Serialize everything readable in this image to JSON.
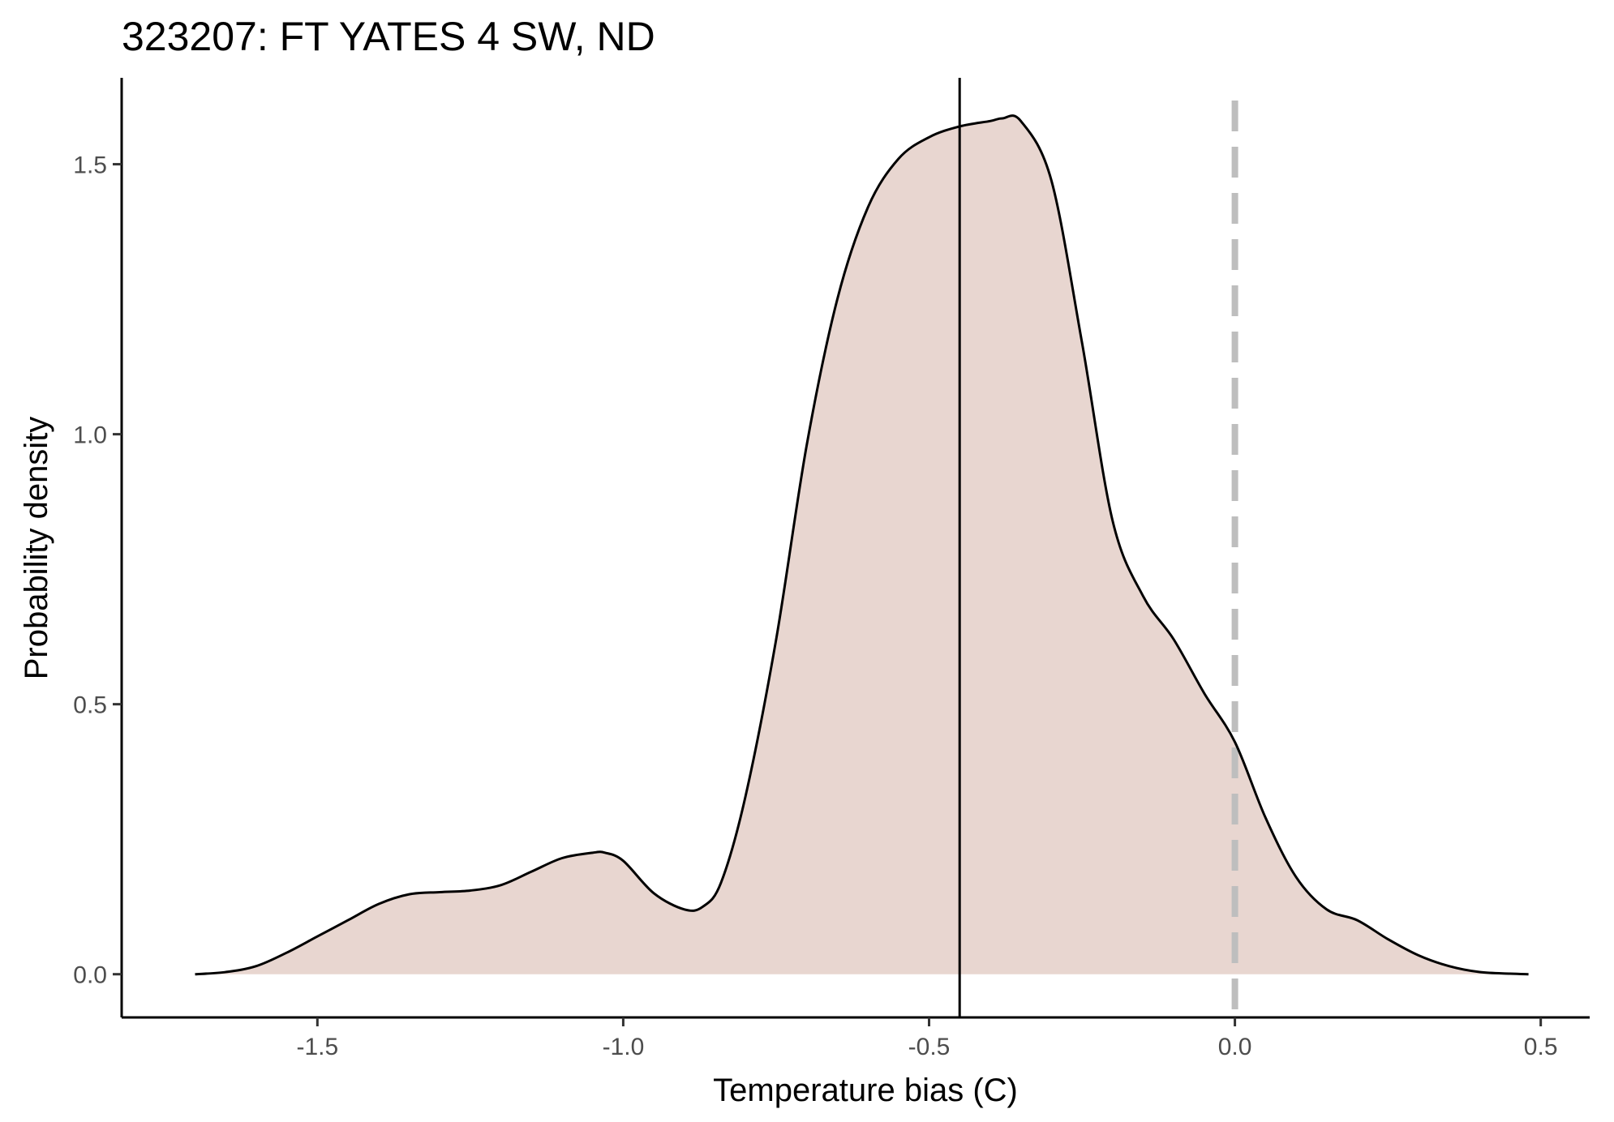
{
  "chart_data": {
    "type": "area",
    "title": "323207: FT YATES 4 SW, ND",
    "xlabel": "Temperature bias (C)",
    "ylabel": "Probability density",
    "xlim": [
      -1.82,
      0.58
    ],
    "ylim": [
      -0.08,
      1.66
    ],
    "x_ticks": [
      -1.5,
      -1.0,
      -0.5,
      0.0,
      0.5
    ],
    "x_tick_labels": [
      "-1.5",
      "-1.0",
      "-0.5",
      "0.0",
      "0.5"
    ],
    "y_ticks": [
      0.0,
      0.5,
      1.0,
      1.5
    ],
    "y_tick_labels": [
      "0.0",
      "0.5",
      "1.0",
      "1.5"
    ],
    "grid": false,
    "legend": "none",
    "series": [
      {
        "x": [
          -1.7,
          -1.65,
          -1.6,
          -1.55,
          -1.5,
          -1.45,
          -1.4,
          -1.35,
          -1.3,
          -1.25,
          -1.2,
          -1.15,
          -1.1,
          -1.05,
          -1.03,
          -1.0,
          -0.95,
          -0.9,
          -0.87,
          -0.84,
          -0.8,
          -0.75,
          -0.7,
          -0.65,
          -0.6,
          -0.55,
          -0.5,
          -0.45,
          -0.4,
          -0.38,
          -0.35,
          -0.3,
          -0.25,
          -0.2,
          -0.15,
          -0.1,
          -0.05,
          0.0,
          0.05,
          0.1,
          0.15,
          0.2,
          0.25,
          0.3,
          0.35,
          0.4,
          0.45,
          0.48
        ],
        "y": [
          0.0,
          0.004,
          0.015,
          0.04,
          0.07,
          0.1,
          0.13,
          0.148,
          0.152,
          0.155,
          0.165,
          0.19,
          0.215,
          0.225,
          0.225,
          0.21,
          0.15,
          0.12,
          0.125,
          0.17,
          0.33,
          0.62,
          0.98,
          1.25,
          1.42,
          1.51,
          1.55,
          1.57,
          1.58,
          1.585,
          1.58,
          1.47,
          1.17,
          0.84,
          0.7,
          0.62,
          0.52,
          0.43,
          0.29,
          0.18,
          0.12,
          0.1,
          0.065,
          0.035,
          0.015,
          0.004,
          0.001,
          0.0
        ]
      }
    ],
    "reference_lines": {
      "mean_x": -0.45,
      "zero_x": 0.0
    },
    "colors": {
      "fill": "#e8d6d0",
      "curve": "#000000",
      "mean_line": "#000000",
      "zero_line": "#bebebe",
      "axis": "#000000"
    }
  }
}
